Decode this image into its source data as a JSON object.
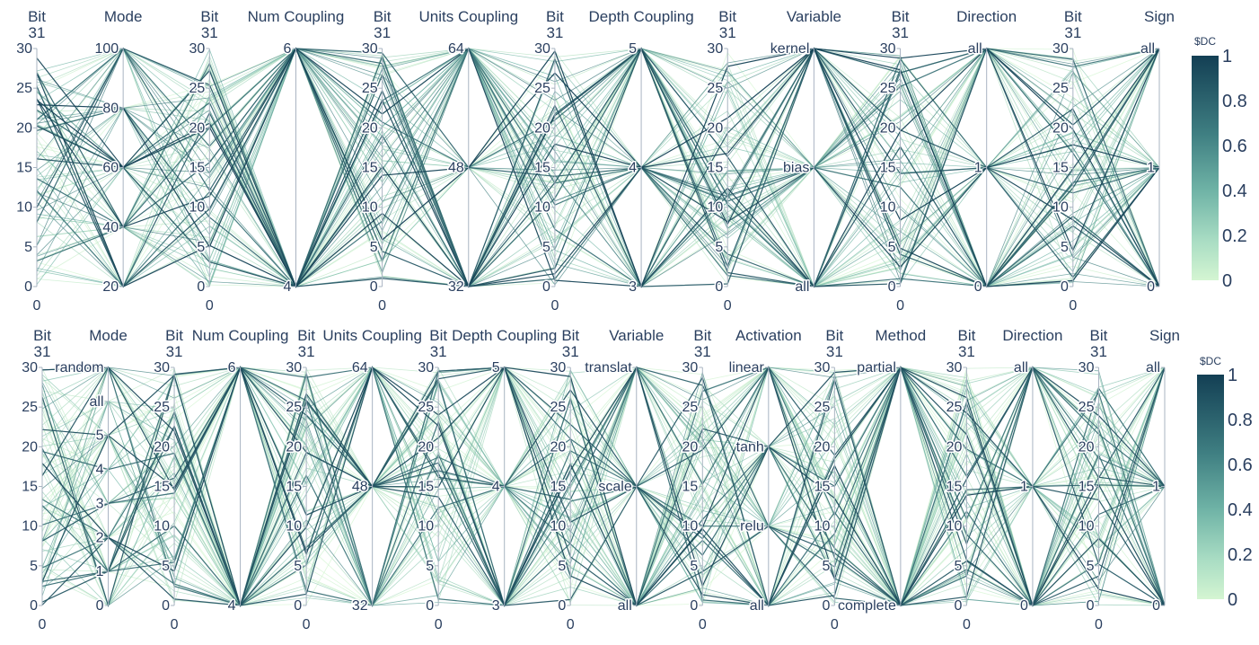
{
  "colors": {
    "low": "#d4f5d2",
    "mid": "#6fb3a6",
    "high": "#133f54",
    "axis": "#a9b4c2",
    "text": "#2a3f5f"
  },
  "chart_data": [
    {
      "type": "parallel_coordinates",
      "colorbar": {
        "title": "$DC",
        "ticks": [
          "1",
          "0.8",
          "0.6",
          "0.4",
          "0.2",
          "0"
        ],
        "range": [
          0,
          1
        ]
      },
      "axes": [
        {
          "label": "Bit 31",
          "ticks": [
            "30",
            "25",
            "20",
            "15",
            "10",
            "5",
            "0"
          ],
          "range_label": "0"
        },
        {
          "label": "Mode",
          "ticks": [
            "100",
            "80",
            "60",
            "40",
            "20"
          ]
        },
        {
          "label": "Bit 31",
          "ticks": [
            "30",
            "25",
            "20",
            "15",
            "10",
            "5",
            "0"
          ],
          "range_label": "0"
        },
        {
          "label": "Num Coupling",
          "ticks": [
            "6",
            "4"
          ]
        },
        {
          "label": "Bit 31",
          "ticks": [
            "30",
            "25",
            "20",
            "15",
            "10",
            "5",
            "0"
          ],
          "range_label": "0"
        },
        {
          "label": "Units Coupling",
          "ticks": [
            "64",
            "48",
            "32"
          ]
        },
        {
          "label": "Bit 31",
          "ticks": [
            "30",
            "25",
            "20",
            "15",
            "10",
            "5",
            "0"
          ],
          "range_label": "0"
        },
        {
          "label": "Depth Coupling",
          "ticks": [
            "5",
            "4",
            "3"
          ]
        },
        {
          "label": "Bit 31",
          "ticks": [
            "30",
            "25",
            "20",
            "15",
            "10",
            "5",
            "0"
          ],
          "range_label": "0"
        },
        {
          "label": "Variable",
          "ticks": [
            "kernel",
            "bias",
            "all"
          ]
        },
        {
          "label": "Bit 31",
          "ticks": [
            "30",
            "25",
            "20",
            "15",
            "10",
            "5",
            "0"
          ],
          "range_label": "0"
        },
        {
          "label": "Direction",
          "ticks": [
            "all",
            "1",
            "0"
          ]
        },
        {
          "label": "Bit 31",
          "ticks": [
            "30",
            "25",
            "20",
            "15",
            "10",
            "5",
            "0"
          ],
          "range_label": "0"
        },
        {
          "label": "Sign",
          "ticks": [
            "all",
            "1",
            "0"
          ]
        }
      ]
    },
    {
      "type": "parallel_coordinates",
      "colorbar": {
        "title": "$DC",
        "ticks": [
          "1",
          "0.8",
          "0.6",
          "0.4",
          "0.2",
          "0"
        ],
        "range": [
          0,
          1
        ]
      },
      "axes": [
        {
          "label": "Bit 31",
          "ticks": [
            "30",
            "25",
            "20",
            "15",
            "10",
            "5",
            "0"
          ],
          "range_label": "0"
        },
        {
          "label": "Mode",
          "ticks": [
            "random",
            "all",
            "5",
            "4",
            "3",
            "2",
            "1",
            "0"
          ]
        },
        {
          "label": "Bit 31",
          "ticks": [
            "30",
            "25",
            "20",
            "15",
            "10",
            "5",
            "0"
          ],
          "range_label": "0"
        },
        {
          "label": "Num Coupling",
          "ticks": [
            "6",
            "4"
          ]
        },
        {
          "label": "Bit 31",
          "ticks": [
            "30",
            "25",
            "20",
            "15",
            "10",
            "5",
            "0"
          ],
          "range_label": "0"
        },
        {
          "label": "Units Coupling",
          "ticks": [
            "64",
            "48",
            "32"
          ]
        },
        {
          "label": "Bit 31",
          "ticks": [
            "30",
            "25",
            "20",
            "15",
            "10",
            "5",
            "0"
          ],
          "range_label": "0"
        },
        {
          "label": "Depth Coupling",
          "ticks": [
            "5",
            "4",
            "3"
          ]
        },
        {
          "label": "Bit 31",
          "ticks": [
            "30",
            "25",
            "20",
            "15",
            "10",
            "5",
            "0"
          ],
          "range_label": "0"
        },
        {
          "label": "Variable",
          "ticks": [
            "translat",
            "scale",
            "all"
          ]
        },
        {
          "label": "Bit 31",
          "ticks": [
            "30",
            "25",
            "20",
            "15",
            "10",
            "5",
            "0"
          ],
          "range_label": "0"
        },
        {
          "label": "Activation",
          "ticks": [
            "linear",
            "tanh",
            "relu",
            "all"
          ]
        },
        {
          "label": "Bit 31",
          "ticks": [
            "30",
            "25",
            "20",
            "15",
            "10",
            "5",
            "0"
          ],
          "range_label": "0"
        },
        {
          "label": "Method",
          "ticks": [
            "partial",
            "complete"
          ]
        },
        {
          "label": "Bit 31",
          "ticks": [
            "30",
            "25",
            "20",
            "15",
            "10",
            "5",
            "0"
          ],
          "range_label": "0"
        },
        {
          "label": "Direction",
          "ticks": [
            "all",
            "1",
            "0"
          ]
        },
        {
          "label": "Bit 31",
          "ticks": [
            "30",
            "25",
            "20",
            "15",
            "10",
            "5",
            "0"
          ],
          "range_label": "0"
        },
        {
          "label": "Sign",
          "ticks": [
            "all",
            "1",
            "0"
          ]
        }
      ]
    }
  ]
}
